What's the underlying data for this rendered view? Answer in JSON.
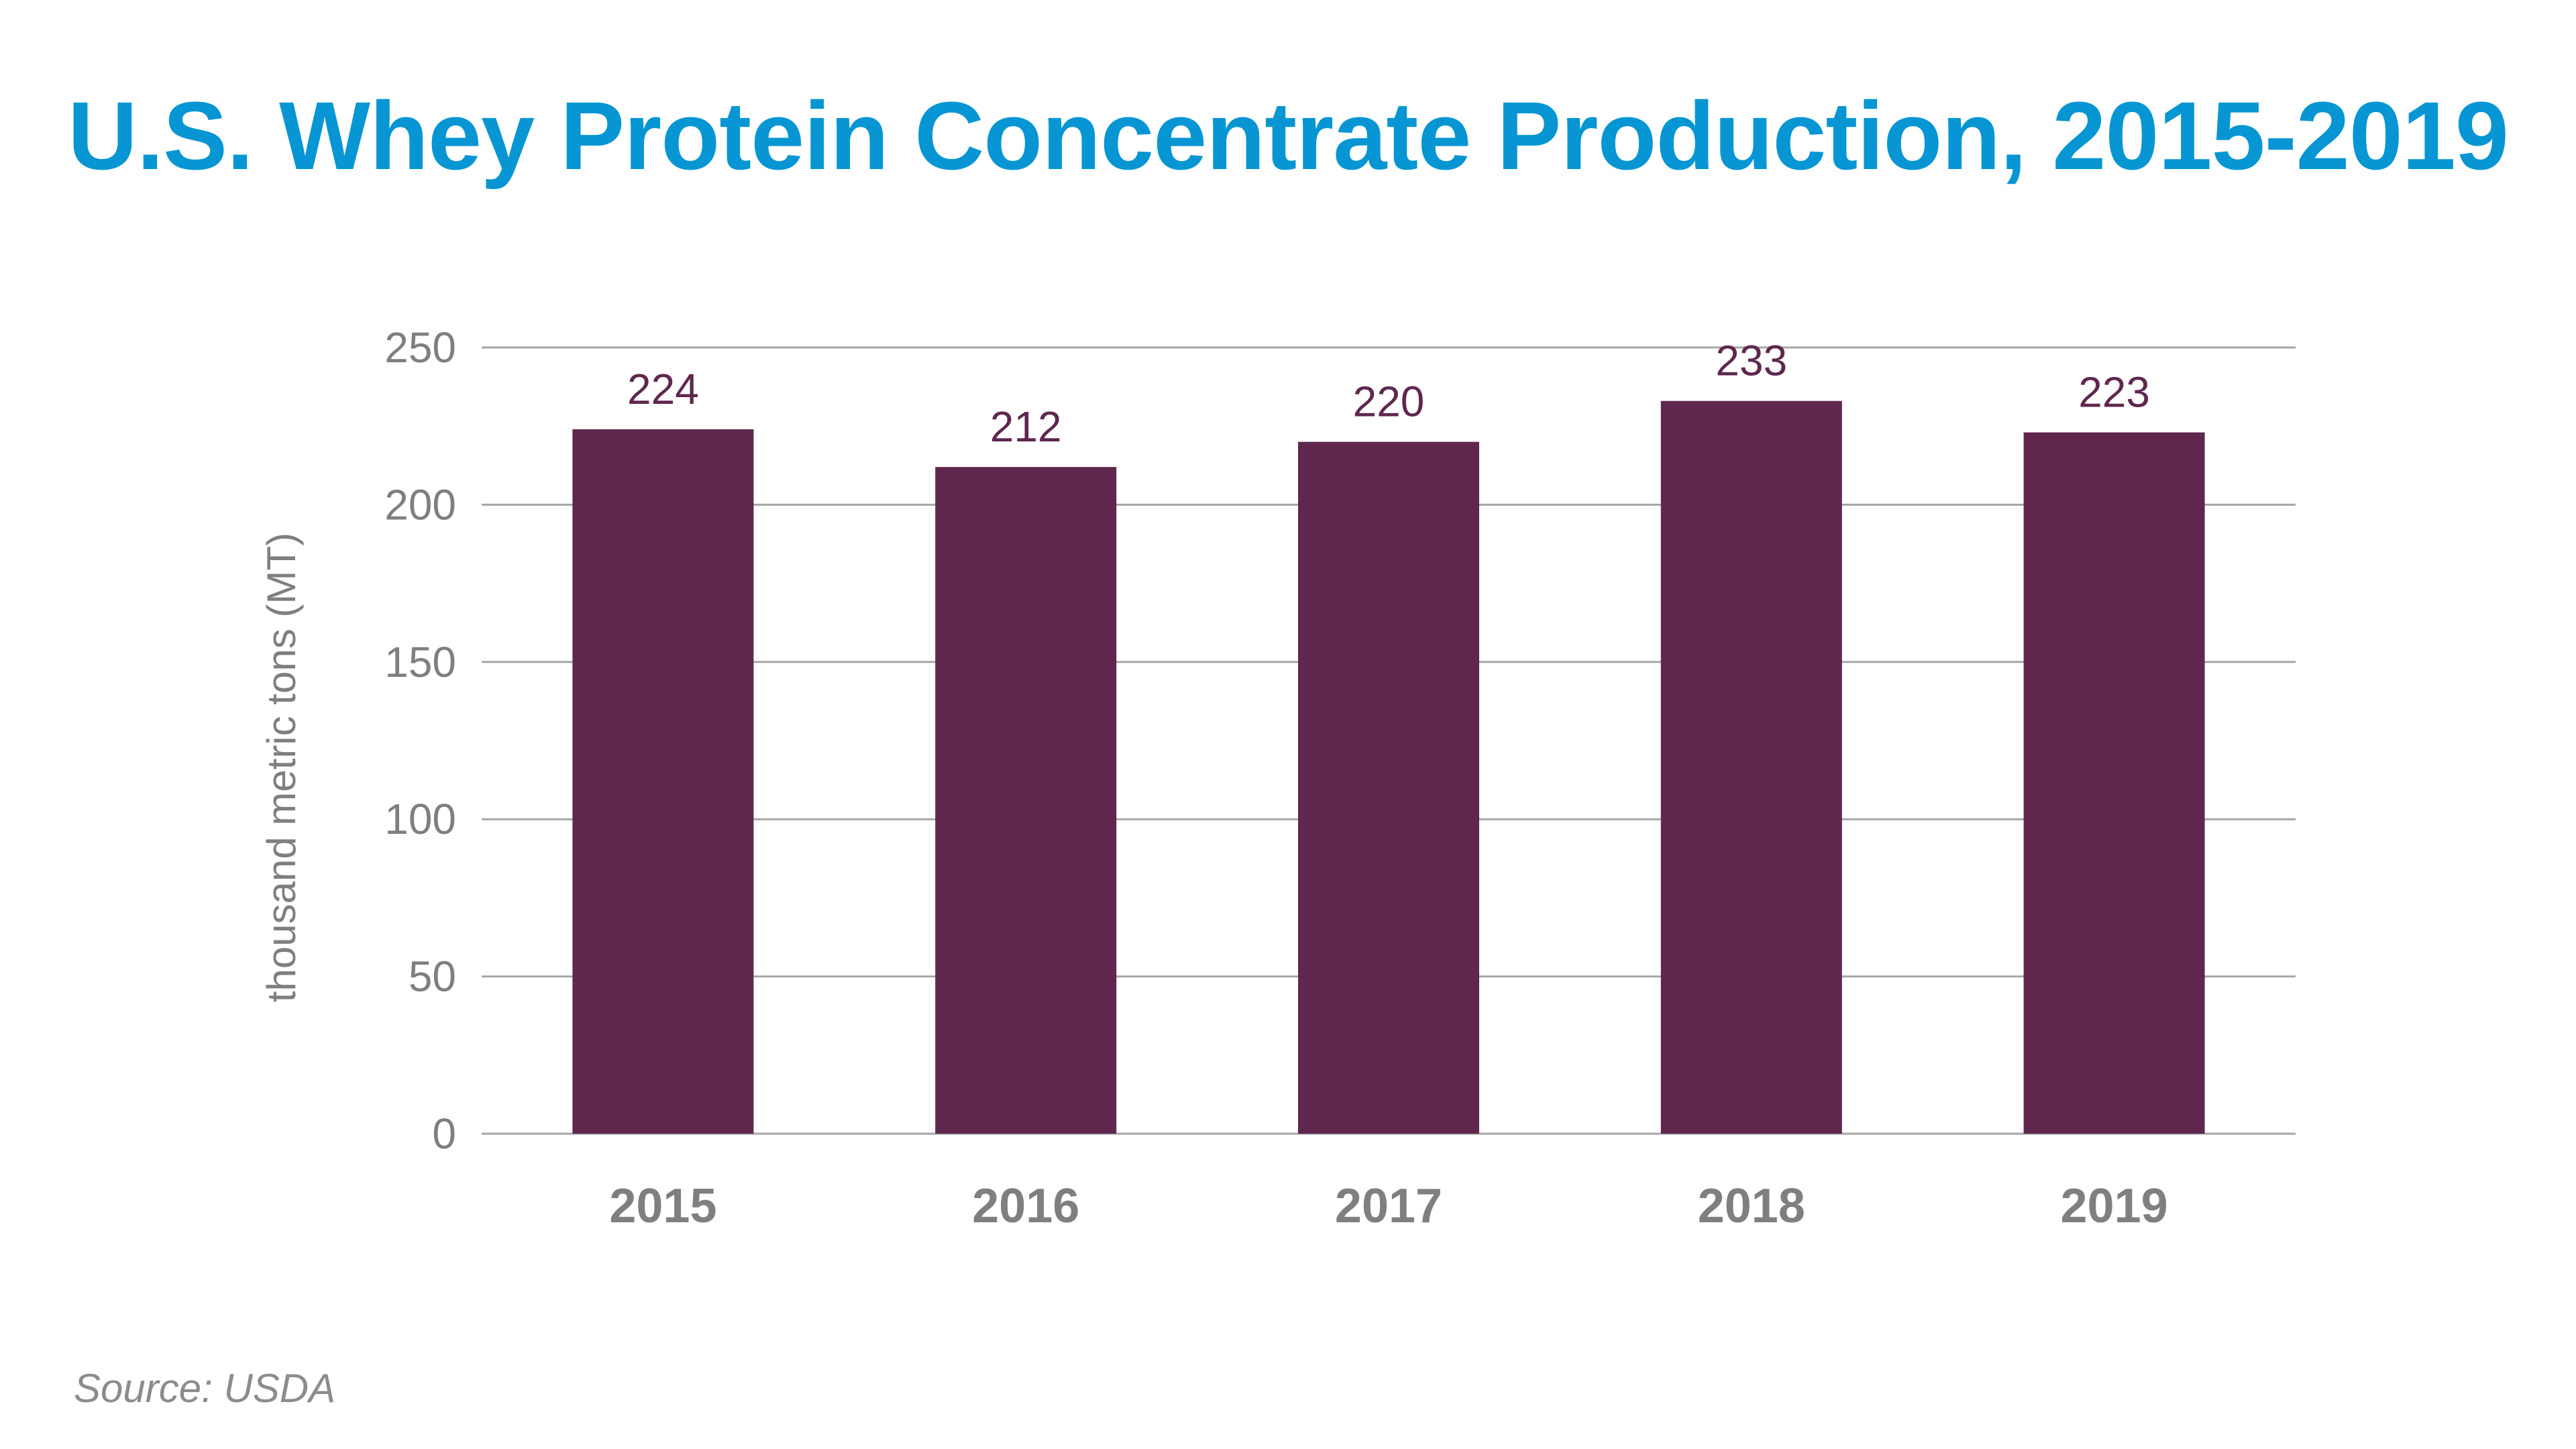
{
  "chart_data": {
    "type": "bar",
    "title": "U.S. Whey Protein Concentrate Production, 2015-2019",
    "xlabel": "",
    "ylabel": "thousand metric tons (MT)",
    "categories": [
      "2015",
      "2016",
      "2017",
      "2018",
      "2019"
    ],
    "values": [
      224,
      212,
      220,
      233,
      223
    ],
    "data_labels": [
      "224",
      "212",
      "220",
      "233",
      "223"
    ],
    "ylim": [
      0,
      250
    ],
    "yticks": [
      0,
      50,
      100,
      150,
      200,
      250
    ],
    "ytick_labels": [
      "0",
      "50",
      "100",
      "150",
      "200",
      "250"
    ],
    "grid": true,
    "legend": "none",
    "source": "Source: USDA"
  },
  "colors": {
    "title": "#0796d3",
    "bar": "#5f274e",
    "data_label": "#5f274e",
    "axis_text": "#7f7f7f",
    "gridline": "#a6a6a6",
    "source": "#8c8c8c"
  }
}
